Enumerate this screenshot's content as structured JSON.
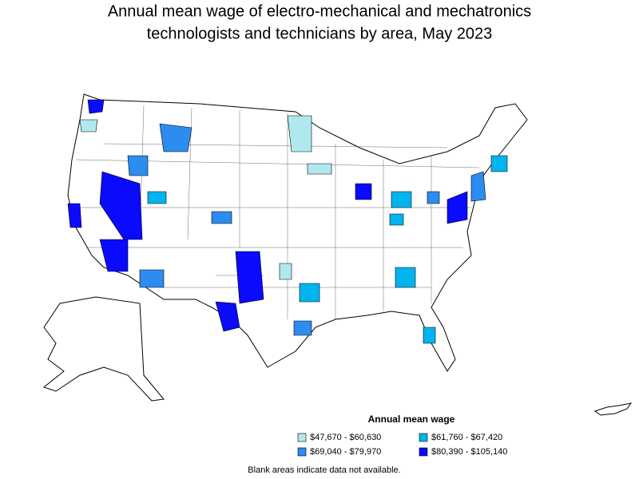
{
  "title_lines": [
    "Annual mean wage of electro-mechanical and mechatronics",
    "technologists and technicians by area, May 2023"
  ],
  "legend": {
    "title": "Annual mean wage",
    "items": [
      {
        "label": "$47,670 - $60,630",
        "color": "#b0e8ee"
      },
      {
        "label": "$61,760 - $67,420",
        "color": "#00b4f0"
      },
      {
        "label": "$69,040 - $79,970",
        "color": "#2d8cf0"
      },
      {
        "label": "$80,390 - $105,140",
        "color": "#0a0aff"
      }
    ]
  },
  "footnote": "Blank areas indicate data not available."
}
